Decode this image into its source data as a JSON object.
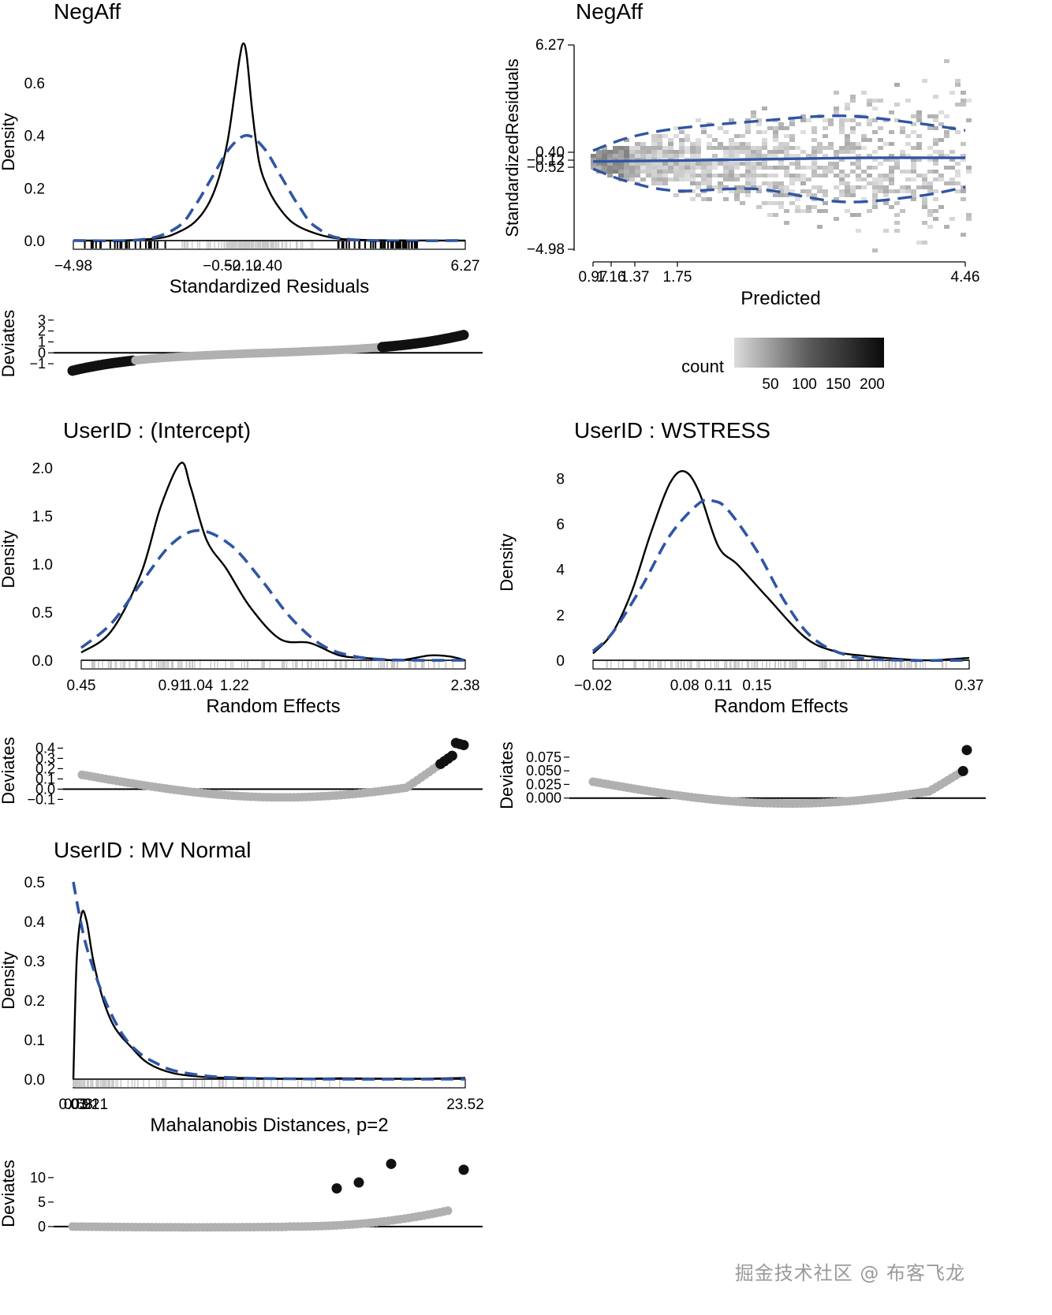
{
  "watermark": "掘金技术社区 @ 布客飞龙",
  "colors": {
    "blue": "#2f55a4",
    "grey": "#b0b0b0",
    "black": "#111111"
  },
  "chart_data": [
    {
      "type": "area",
      "title": "NegAff",
      "xlabel": "Standardized Residuals",
      "ylabel": "Density",
      "xlim": [
        -4.98,
        6.27
      ],
      "ylim": [
        0,
        0.75
      ],
      "yticks": [
        "0.0",
        "0.2",
        "0.4",
        "0.6"
      ],
      "xticks": [
        "−4.98",
        "−0.52",
        "−0.12",
        "0.40",
        "6.27"
      ],
      "series": [
        {
          "name": "Observed density",
          "x": [
            -4.98,
            -3.5,
            -2.5,
            -2,
            -1.5,
            -1.1,
            -0.8,
            -0.55,
            -0.35,
            -0.2,
            -0.1,
            0.0,
            0.15,
            0.35,
            0.6,
            0.9,
            1.3,
            1.8,
            2.5,
            3.5,
            6.27
          ],
          "y": [
            0,
            0.001,
            0.01,
            0.03,
            0.07,
            0.14,
            0.24,
            0.38,
            0.56,
            0.7,
            0.75,
            0.7,
            0.5,
            0.3,
            0.2,
            0.13,
            0.07,
            0.035,
            0.01,
            0.002,
            0
          ]
        },
        {
          "name": "Normal reference",
          "x": [
            -4.98,
            -3,
            -2,
            -1.5,
            -1,
            -0.5,
            0,
            0.5,
            1,
            1.5,
            2,
            3,
            6.27
          ],
          "y": [
            0,
            0.004,
            0.05,
            0.13,
            0.24,
            0.35,
            0.4,
            0.35,
            0.24,
            0.13,
            0.05,
            0.004,
            0
          ]
        }
      ]
    },
    {
      "type": "heatmap",
      "title": "NegAff",
      "xlabel": "Predicted",
      "ylabel": "StandardizedResiduals",
      "xlim": [
        0.97,
        4.46
      ],
      "ylim": [
        -4.98,
        6.27
      ],
      "xticks": [
        "0.97",
        "1.16",
        "1.37",
        "1.75",
        "4.46"
      ],
      "yticks": [
        "−4.98",
        "−0.52",
        "−0.12",
        "0.40",
        "6.27"
      ],
      "legend": {
        "title": "count",
        "ticks": [
          "50",
          "100",
          "150",
          "200"
        ]
      },
      "series": [
        {
          "name": "Smooth mean",
          "x": [
            0.97,
            1.2,
            1.75,
            2.5,
            3.5,
            4.46
          ],
          "y": [
            -0.1,
            -0.08,
            -0.05,
            0.02,
            0.1,
            0.1
          ]
        },
        {
          "name": "Upper band",
          "x": [
            0.97,
            1.3,
            1.75,
            2.5,
            3.3,
            4.0,
            4.46
          ],
          "y": [
            0.5,
            1.2,
            1.7,
            2.1,
            2.4,
            2.0,
            1.6
          ]
        },
        {
          "name": "Lower band",
          "x": [
            0.97,
            1.3,
            1.75,
            2.5,
            3.3,
            4.0,
            4.46
          ],
          "y": [
            -0.5,
            -1.2,
            -1.7,
            -1.6,
            -2.3,
            -2.0,
            -1.5
          ]
        }
      ]
    },
    {
      "type": "area",
      "title": "UserID : (Intercept)",
      "xlabel": "Random Effects",
      "ylabel": "Density",
      "xlim": [
        0.45,
        2.38
      ],
      "ylim": [
        0,
        2.1
      ],
      "yticks": [
        "0.0",
        "0.5",
        "1.0",
        "1.5",
        "2.0"
      ],
      "xticks": [
        "0.45",
        "0.91",
        "1.04",
        "1.22",
        "2.38"
      ],
      "series": [
        {
          "name": "Observed density",
          "x": [
            0.45,
            0.6,
            0.75,
            0.85,
            0.95,
            1.0,
            1.08,
            1.18,
            1.3,
            1.45,
            1.6,
            1.75,
            1.9,
            2.05,
            2.2,
            2.3,
            2.38
          ],
          "y": [
            0.08,
            0.3,
            0.9,
            1.6,
            2.05,
            1.8,
            1.25,
            0.95,
            0.55,
            0.22,
            0.18,
            0.05,
            0.02,
            0.0,
            0.05,
            0.04,
            0.0
          ]
        },
        {
          "name": "Normal reference",
          "x": [
            0.45,
            0.6,
            0.75,
            0.9,
            1.04,
            1.2,
            1.35,
            1.5,
            1.65,
            1.8,
            2.0,
            2.38
          ],
          "y": [
            0.13,
            0.38,
            0.8,
            1.2,
            1.35,
            1.2,
            0.85,
            0.45,
            0.17,
            0.05,
            0.005,
            0.0
          ]
        }
      ]
    },
    {
      "type": "area",
      "title": "UserID : WSTRESS",
      "xlabel": "Random Effects",
      "ylabel": "Density",
      "xlim": [
        -0.02,
        0.37
      ],
      "ylim": [
        0,
        8.6
      ],
      "yticks": [
        "0",
        "2",
        "4",
        "6",
        "8"
      ],
      "xticks": [
        "−0.02",
        "0.08",
        "0.11",
        "0.15",
        "0.37"
      ],
      "series": [
        {
          "name": "Observed density",
          "x": [
            -0.02,
            0.0,
            0.02,
            0.04,
            0.06,
            0.075,
            0.09,
            0.11,
            0.13,
            0.16,
            0.2,
            0.23,
            0.26,
            0.3,
            0.33,
            0.37
          ],
          "y": [
            0.3,
            1.2,
            3.0,
            5.6,
            7.8,
            8.3,
            7.4,
            5.0,
            4.2,
            2.8,
            1.0,
            0.4,
            0.2,
            0.05,
            0.0,
            0.1
          ]
        },
        {
          "name": "Normal reference",
          "x": [
            -0.02,
            0.0,
            0.03,
            0.06,
            0.09,
            0.105,
            0.12,
            0.15,
            0.18,
            0.21,
            0.25,
            0.3,
            0.37
          ],
          "y": [
            0.4,
            1.2,
            3.2,
            5.5,
            6.9,
            7.0,
            6.6,
            4.8,
            2.5,
            0.9,
            0.15,
            0.0,
            0.0
          ]
        }
      ]
    },
    {
      "type": "area",
      "title": "UserID : MV Normal",
      "xlabel": "Mahalanobis Distances, p=2",
      "ylabel": "Density",
      "xlim": [
        0.0,
        23.52
      ],
      "ylim": [
        0,
        0.5
      ],
      "yticks": [
        "0.0",
        "0.1",
        "0.2",
        "0.3",
        "0.4",
        "0.5"
      ],
      "xticks": [
        "0.03",
        "0.58",
        "0.91",
        "1.21",
        "23.52"
      ],
      "series": [
        {
          "name": "Observed density",
          "x": [
            0.0,
            0.2,
            0.5,
            0.8,
            1.2,
            1.8,
            2.5,
            3.5,
            4.5,
            6,
            8,
            10,
            13,
            16,
            20,
            23.52
          ],
          "y": [
            0.0,
            0.3,
            0.42,
            0.4,
            0.3,
            0.2,
            0.13,
            0.08,
            0.04,
            0.015,
            0.005,
            0.003,
            0.001,
            0.002,
            0.001,
            0.003
          ]
        },
        {
          "name": "Normal reference",
          "x": [
            0.0,
            0.3,
            0.7,
            1.2,
            2,
            3,
            4,
            5,
            6,
            8,
            10,
            13,
            16,
            20,
            23.52
          ],
          "y": [
            0.5,
            0.43,
            0.35,
            0.28,
            0.19,
            0.11,
            0.065,
            0.04,
            0.022,
            0.008,
            0.003,
            0.001,
            0.0,
            0.0,
            0.0
          ]
        }
      ]
    }
  ],
  "qq_panels": [
    {
      "ylabel": "Deviates",
      "yticks": [
        "−1",
        "0",
        "1",
        "2",
        "3"
      ],
      "ylim": [
        -1.5,
        3.2
      ]
    },
    {
      "ylabel": "Deviates",
      "yticks": [
        "−0.1",
        "0.0",
        "0.1",
        "0.2",
        "0.3",
        "0.4"
      ],
      "ylim": [
        -0.12,
        0.48
      ]
    },
    {
      "ylabel": "Deviates",
      "yticks": [
        "0.000",
        "0.025",
        "0.050",
        "0.075"
      ],
      "ylim": [
        -0.012,
        0.095
      ]
    },
    {
      "ylabel": "Deviates",
      "yticks": [
        "0",
        "5",
        "10"
      ],
      "ylim": [
        -0.5,
        14
      ]
    }
  ]
}
